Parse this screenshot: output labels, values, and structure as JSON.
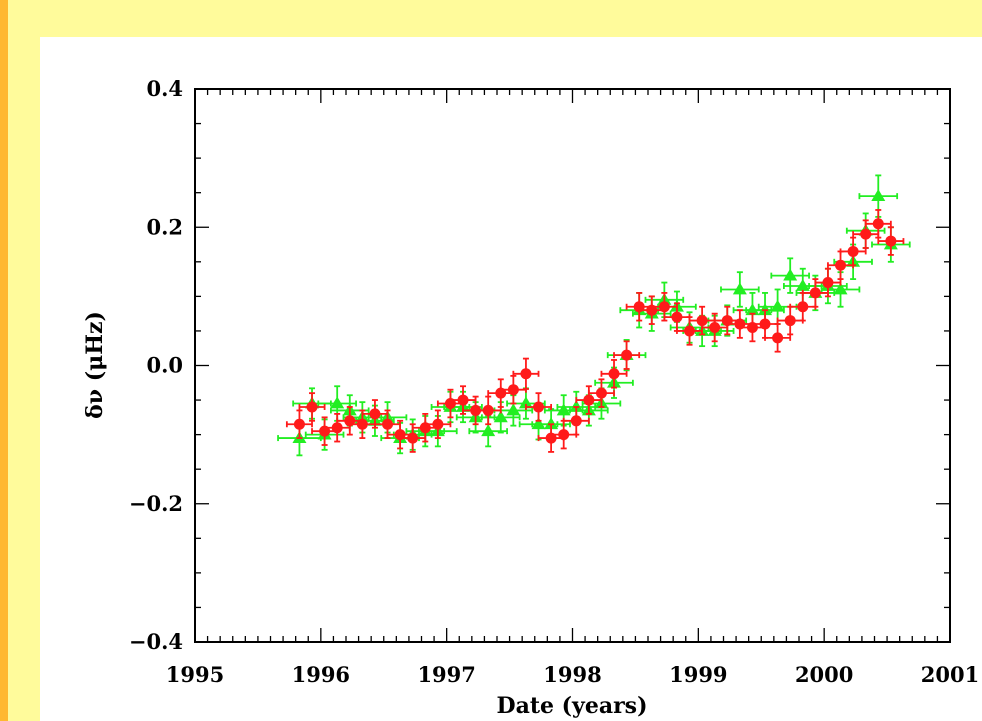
{
  "page": {
    "background": "#fffb9b",
    "accent_strip": "#ffb830",
    "panel": "#ffffff"
  },
  "chart_data": {
    "type": "scatter",
    "title": "",
    "xlabel": "Date (years)",
    "ylabel": "δν (μHz)",
    "xlim": [
      1995,
      2001
    ],
    "ylim": [
      -0.4,
      0.4
    ],
    "x_ticks": [
      "1995",
      "1996",
      "1997",
      "1998",
      "1999",
      "2000",
      "2001"
    ],
    "y_ticks": [
      "−0.4",
      "−0.2",
      "0.0",
      "0.2",
      "0.4"
    ],
    "grid": false,
    "series": [
      {
        "marker": "circle",
        "color": "#ff1a1a",
        "points": [
          {
            "x": 1995.83,
            "y": -0.085,
            "xerr": 0.1,
            "yerr": 0.02
          },
          {
            "x": 1995.93,
            "y": -0.06,
            "xerr": 0.1,
            "yerr": 0.02
          },
          {
            "x": 1996.03,
            "y": -0.095,
            "xerr": 0.1,
            "yerr": 0.02
          },
          {
            "x": 1996.13,
            "y": -0.09,
            "xerr": 0.1,
            "yerr": 0.02
          },
          {
            "x": 1996.23,
            "y": -0.08,
            "xerr": 0.1,
            "yerr": 0.02
          },
          {
            "x": 1996.33,
            "y": -0.085,
            "xerr": 0.1,
            "yerr": 0.02
          },
          {
            "x": 1996.43,
            "y": -0.07,
            "xerr": 0.1,
            "yerr": 0.02
          },
          {
            "x": 1996.53,
            "y": -0.085,
            "xerr": 0.1,
            "yerr": 0.02
          },
          {
            "x": 1996.63,
            "y": -0.1,
            "xerr": 0.1,
            "yerr": 0.02
          },
          {
            "x": 1996.73,
            "y": -0.105,
            "xerr": 0.1,
            "yerr": 0.02
          },
          {
            "x": 1996.83,
            "y": -0.09,
            "xerr": 0.1,
            "yerr": 0.02
          },
          {
            "x": 1996.93,
            "y": -0.085,
            "xerr": 0.1,
            "yerr": 0.02
          },
          {
            "x": 1997.03,
            "y": -0.055,
            "xerr": 0.1,
            "yerr": 0.02
          },
          {
            "x": 1997.13,
            "y": -0.05,
            "xerr": 0.1,
            "yerr": 0.02
          },
          {
            "x": 1997.23,
            "y": -0.065,
            "xerr": 0.1,
            "yerr": 0.02
          },
          {
            "x": 1997.33,
            "y": -0.065,
            "xerr": 0.1,
            "yerr": 0.02
          },
          {
            "x": 1997.43,
            "y": -0.04,
            "xerr": 0.1,
            "yerr": 0.02
          },
          {
            "x": 1997.53,
            "y": -0.035,
            "xerr": 0.1,
            "yerr": 0.02
          },
          {
            "x": 1997.63,
            "y": -0.012,
            "xerr": 0.1,
            "yerr": 0.022
          },
          {
            "x": 1997.73,
            "y": -0.06,
            "xerr": 0.1,
            "yerr": 0.02
          },
          {
            "x": 1997.83,
            "y": -0.105,
            "xerr": 0.1,
            "yerr": 0.02
          },
          {
            "x": 1997.93,
            "y": -0.1,
            "xerr": 0.1,
            "yerr": 0.02
          },
          {
            "x": 1998.03,
            "y": -0.08,
            "xerr": 0.1,
            "yerr": 0.02
          },
          {
            "x": 1998.13,
            "y": -0.05,
            "xerr": 0.1,
            "yerr": 0.02
          },
          {
            "x": 1998.23,
            "y": -0.04,
            "xerr": 0.1,
            "yerr": 0.02
          },
          {
            "x": 1998.33,
            "y": -0.012,
            "xerr": 0.1,
            "yerr": 0.02
          },
          {
            "x": 1998.43,
            "y": 0.015,
            "xerr": 0.1,
            "yerr": 0.02
          },
          {
            "x": 1998.53,
            "y": 0.085,
            "xerr": 0.1,
            "yerr": 0.02
          },
          {
            "x": 1998.63,
            "y": 0.08,
            "xerr": 0.1,
            "yerr": 0.02
          },
          {
            "x": 1998.73,
            "y": 0.085,
            "xerr": 0.1,
            "yerr": 0.02
          },
          {
            "x": 1998.83,
            "y": 0.07,
            "xerr": 0.1,
            "yerr": 0.02
          },
          {
            "x": 1998.93,
            "y": 0.05,
            "xerr": 0.1,
            "yerr": 0.02
          },
          {
            "x": 1999.03,
            "y": 0.065,
            "xerr": 0.1,
            "yerr": 0.02
          },
          {
            "x": 1999.13,
            "y": 0.055,
            "xerr": 0.1,
            "yerr": 0.02
          },
          {
            "x": 1999.23,
            "y": 0.065,
            "xerr": 0.1,
            "yerr": 0.02
          },
          {
            "x": 1999.33,
            "y": 0.06,
            "xerr": 0.1,
            "yerr": 0.02
          },
          {
            "x": 1999.43,
            "y": 0.055,
            "xerr": 0.1,
            "yerr": 0.02
          },
          {
            "x": 1999.53,
            "y": 0.06,
            "xerr": 0.1,
            "yerr": 0.02
          },
          {
            "x": 1999.63,
            "y": 0.04,
            "xerr": 0.1,
            "yerr": 0.02
          },
          {
            "x": 1999.73,
            "y": 0.065,
            "xerr": 0.1,
            "yerr": 0.02
          },
          {
            "x": 1999.83,
            "y": 0.085,
            "xerr": 0.1,
            "yerr": 0.02
          },
          {
            "x": 1999.93,
            "y": 0.105,
            "xerr": 0.1,
            "yerr": 0.02
          },
          {
            "x": 2000.03,
            "y": 0.12,
            "xerr": 0.1,
            "yerr": 0.02
          },
          {
            "x": 2000.13,
            "y": 0.145,
            "xerr": 0.1,
            "yerr": 0.02
          },
          {
            "x": 2000.23,
            "y": 0.165,
            "xerr": 0.1,
            "yerr": 0.02
          },
          {
            "x": 2000.33,
            "y": 0.19,
            "xerr": 0.1,
            "yerr": 0.02
          },
          {
            "x": 2000.43,
            "y": 0.205,
            "xerr": 0.1,
            "yerr": 0.02
          },
          {
            "x": 2000.53,
            "y": 0.18,
            "xerr": 0.1,
            "yerr": 0.02
          }
        ]
      },
      {
        "marker": "triangle",
        "color": "#22ee22",
        "points": [
          {
            "x": 1995.83,
            "y": -0.105,
            "xerr": 0.17,
            "yerr": 0.025
          },
          {
            "x": 1995.93,
            "y": -0.055,
            "xerr": 0.15,
            "yerr": 0.022
          },
          {
            "x": 1996.03,
            "y": -0.1,
            "xerr": 0.15,
            "yerr": 0.022
          },
          {
            "x": 1996.13,
            "y": -0.055,
            "xerr": 0.15,
            "yerr": 0.025
          },
          {
            "x": 1996.23,
            "y": -0.065,
            "xerr": 0.15,
            "yerr": 0.022
          },
          {
            "x": 1996.33,
            "y": -0.075,
            "xerr": 0.15,
            "yerr": 0.022
          },
          {
            "x": 1996.43,
            "y": -0.08,
            "xerr": 0.15,
            "yerr": 0.022
          },
          {
            "x": 1996.53,
            "y": -0.075,
            "xerr": 0.15,
            "yerr": 0.022
          },
          {
            "x": 1996.63,
            "y": -0.105,
            "xerr": 0.15,
            "yerr": 0.022
          },
          {
            "x": 1996.73,
            "y": -0.1,
            "xerr": 0.15,
            "yerr": 0.022
          },
          {
            "x": 1996.83,
            "y": -0.095,
            "xerr": 0.15,
            "yerr": 0.022
          },
          {
            "x": 1996.93,
            "y": -0.095,
            "xerr": 0.15,
            "yerr": 0.022
          },
          {
            "x": 1997.03,
            "y": -0.06,
            "xerr": 0.15,
            "yerr": 0.022
          },
          {
            "x": 1997.13,
            "y": -0.06,
            "xerr": 0.15,
            "yerr": 0.022
          },
          {
            "x": 1997.23,
            "y": -0.075,
            "xerr": 0.15,
            "yerr": 0.022
          },
          {
            "x": 1997.33,
            "y": -0.095,
            "xerr": 0.15,
            "yerr": 0.022
          },
          {
            "x": 1997.43,
            "y": -0.075,
            "xerr": 0.15,
            "yerr": 0.022
          },
          {
            "x": 1997.53,
            "y": -0.065,
            "xerr": 0.15,
            "yerr": 0.022
          },
          {
            "x": 1997.63,
            "y": -0.055,
            "xerr": 0.15,
            "yerr": 0.022
          },
          {
            "x": 1997.73,
            "y": -0.085,
            "xerr": 0.15,
            "yerr": 0.022
          },
          {
            "x": 1997.83,
            "y": -0.085,
            "xerr": 0.15,
            "yerr": 0.022
          },
          {
            "x": 1997.93,
            "y": -0.065,
            "xerr": 0.15,
            "yerr": 0.022
          },
          {
            "x": 1998.03,
            "y": -0.06,
            "xerr": 0.15,
            "yerr": 0.022
          },
          {
            "x": 1998.13,
            "y": -0.065,
            "xerr": 0.15,
            "yerr": 0.022
          },
          {
            "x": 1998.23,
            "y": -0.055,
            "xerr": 0.15,
            "yerr": 0.022
          },
          {
            "x": 1998.33,
            "y": -0.025,
            "xerr": 0.15,
            "yerr": 0.022
          },
          {
            "x": 1998.43,
            "y": 0.015,
            "xerr": 0.15,
            "yerr": 0.022
          },
          {
            "x": 1998.53,
            "y": 0.08,
            "xerr": 0.15,
            "yerr": 0.025
          },
          {
            "x": 1998.63,
            "y": 0.075,
            "xerr": 0.15,
            "yerr": 0.025
          },
          {
            "x": 1998.73,
            "y": 0.095,
            "xerr": 0.15,
            "yerr": 0.025
          },
          {
            "x": 1998.83,
            "y": 0.085,
            "xerr": 0.15,
            "yerr": 0.022
          },
          {
            "x": 1998.93,
            "y": 0.055,
            "xerr": 0.15,
            "yerr": 0.022
          },
          {
            "x": 1999.03,
            "y": 0.05,
            "xerr": 0.15,
            "yerr": 0.022
          },
          {
            "x": 1999.13,
            "y": 0.05,
            "xerr": 0.15,
            "yerr": 0.022
          },
          {
            "x": 1999.23,
            "y": 0.065,
            "xerr": 0.15,
            "yerr": 0.022
          },
          {
            "x": 1999.33,
            "y": 0.11,
            "xerr": 0.15,
            "yerr": 0.025
          },
          {
            "x": 1999.43,
            "y": 0.08,
            "xerr": 0.15,
            "yerr": 0.025
          },
          {
            "x": 1999.53,
            "y": 0.08,
            "xerr": 0.15,
            "yerr": 0.025
          },
          {
            "x": 1999.63,
            "y": 0.085,
            "xerr": 0.15,
            "yerr": 0.025
          },
          {
            "x": 1999.73,
            "y": 0.13,
            "xerr": 0.15,
            "yerr": 0.025
          },
          {
            "x": 1999.83,
            "y": 0.115,
            "xerr": 0.15,
            "yerr": 0.025
          },
          {
            "x": 1999.93,
            "y": 0.105,
            "xerr": 0.15,
            "yerr": 0.025
          },
          {
            "x": 2000.03,
            "y": 0.115,
            "xerr": 0.15,
            "yerr": 0.025
          },
          {
            "x": 2000.13,
            "y": 0.11,
            "xerr": 0.15,
            "yerr": 0.025
          },
          {
            "x": 2000.23,
            "y": 0.15,
            "xerr": 0.15,
            "yerr": 0.025
          },
          {
            "x": 2000.33,
            "y": 0.195,
            "xerr": 0.15,
            "yerr": 0.025
          },
          {
            "x": 2000.43,
            "y": 0.245,
            "xerr": 0.15,
            "yerr": 0.03
          },
          {
            "x": 2000.53,
            "y": 0.175,
            "xerr": 0.15,
            "yerr": 0.025
          }
        ]
      }
    ]
  }
}
